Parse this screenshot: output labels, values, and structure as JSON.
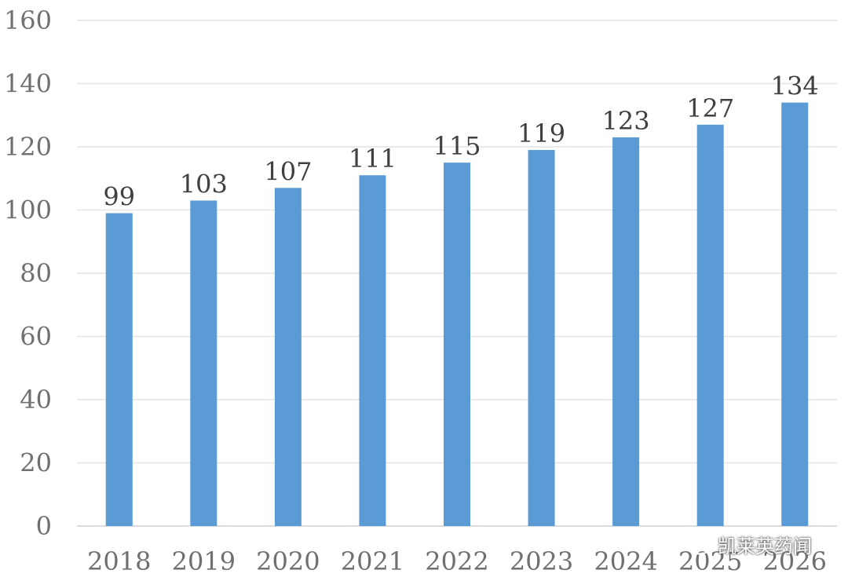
{
  "chart_data": {
    "type": "bar",
    "categories": [
      "2018",
      "2019",
      "2020",
      "2021",
      "2022",
      "2023",
      "2024",
      "2025",
      "2026"
    ],
    "values": [
      99,
      103,
      107,
      111,
      115,
      119,
      123,
      127,
      134
    ],
    "ylim": [
      0,
      160
    ],
    "yticks": [
      0,
      20,
      40,
      60,
      80,
      100,
      120,
      140,
      160
    ],
    "grid": true,
    "bar_color": "#5B9BD5",
    "data_labels": true
  },
  "watermark": {
    "text": "凯莱英药闻",
    "icon": "wechat-icon"
  }
}
